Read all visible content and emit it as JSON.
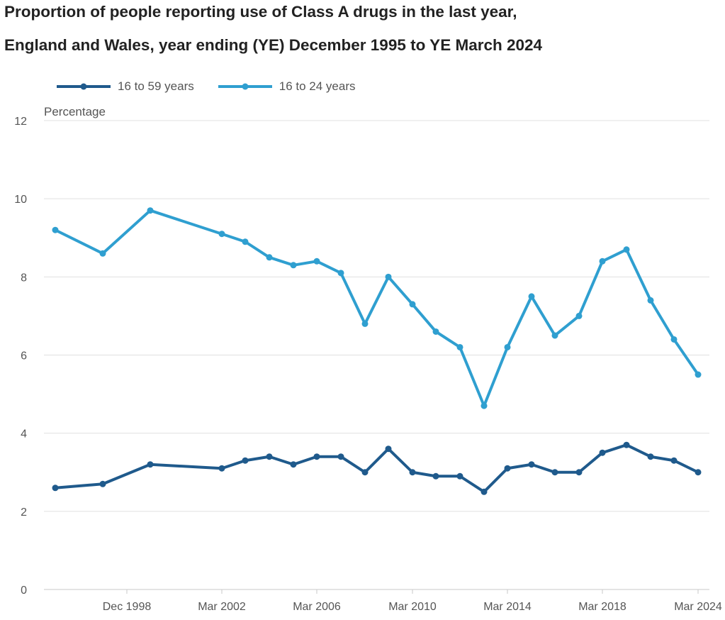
{
  "chart_data": {
    "type": "line",
    "title_lines": [
      "Proportion of people reporting use of Class A drugs in the last year,",
      "England and Wales, year ending (YE) December 1995 to YE March 2024"
    ],
    "ylabel": "Percentage",
    "xlabel": "",
    "ylim": [
      0,
      12
    ],
    "yticks": [
      0,
      2,
      4,
      6,
      8,
      10,
      12
    ],
    "xtick_labels": [
      "Dec 1998",
      "Mar 2002",
      "Mar 2006",
      "Mar 2010",
      "Mar 2014",
      "Mar 2018",
      "Mar 2024"
    ],
    "grid": true,
    "legend_position": "top-left",
    "series": [
      {
        "name": "16 to 59 years",
        "color": "#1f5a8c",
        "values": [
          2.6,
          2.7,
          3.2,
          3.1,
          3.3,
          3.4,
          3.2,
          3.4,
          3.4,
          3.0,
          3.6,
          3.0,
          2.9,
          2.9,
          2.5,
          3.1,
          3.2,
          3.0,
          3.0,
          3.5,
          3.7,
          3.4,
          3.3,
          3.0
        ]
      },
      {
        "name": "16 to 24 years",
        "color": "#2f9fd0",
        "values": [
          9.2,
          8.6,
          9.7,
          9.1,
          8.9,
          8.5,
          8.3,
          8.4,
          8.1,
          6.8,
          8.0,
          7.3,
          6.6,
          6.2,
          4.7,
          6.2,
          7.5,
          6.5,
          7.0,
          8.4,
          8.7,
          7.4,
          6.4,
          5.5
        ]
      }
    ]
  },
  "colors": {
    "gridline": "#e0e0e0",
    "axis": "#c8c8c8",
    "text": "#555555",
    "title": "#222222"
  }
}
